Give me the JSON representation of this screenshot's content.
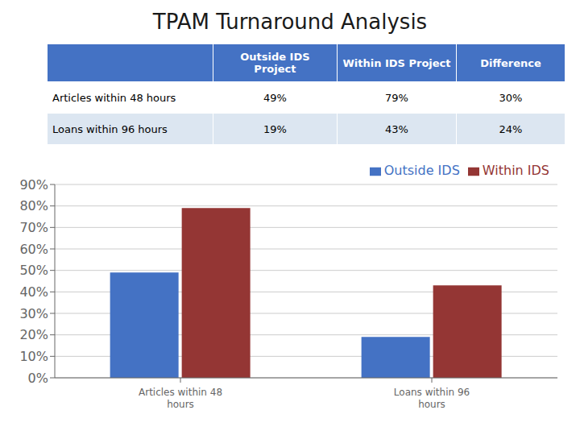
{
  "chart_data": [
    {
      "type": "table",
      "title": "TPAM Turnaround Analysis",
      "columns": [
        "Outside IDS Project",
        "Within IDS Project",
        "Difference"
      ],
      "rows": [
        "Articles within 48 hours",
        "Loans within 96 hours"
      ],
      "cells": [
        [
          "49%",
          "79%",
          "30%"
        ],
        [
          "19%",
          "43%",
          "24%"
        ]
      ],
      "colors": [
        "#4472C4",
        "#FFFFFF",
        "#DCE6F1"
      ]
    },
    {
      "type": "bar",
      "categories": [
        "Articles within 48\nhours",
        "Loans within 96\nhours"
      ],
      "series": [
        {
          "name": "Outside IDS",
          "color": "#4472C4",
          "values": [
            0.49,
            0.19
          ]
        },
        {
          "name": "Within IDS",
          "color": "#943634",
          "values": [
            0.79,
            0.43
          ]
        }
      ],
      "ylim": [
        0,
        0.9
      ],
      "yticks": [
        {
          "value": 0.0,
          "label": "0%"
        },
        {
          "value": 0.1,
          "label": "10%"
        },
        {
          "value": 0.2,
          "label": "20%"
        },
        {
          "value": 0.3,
          "label": "30%"
        },
        {
          "value": 0.4,
          "label": "40%"
        },
        {
          "value": 0.5,
          "label": "50%"
        },
        {
          "value": 0.6,
          "label": "60%"
        },
        {
          "value": 0.7,
          "label": "70%"
        },
        {
          "value": 0.8,
          "label": "80%"
        },
        {
          "value": 0.9,
          "label": "90%"
        }
      ],
      "grid": true,
      "legend": "upper right"
    }
  ]
}
